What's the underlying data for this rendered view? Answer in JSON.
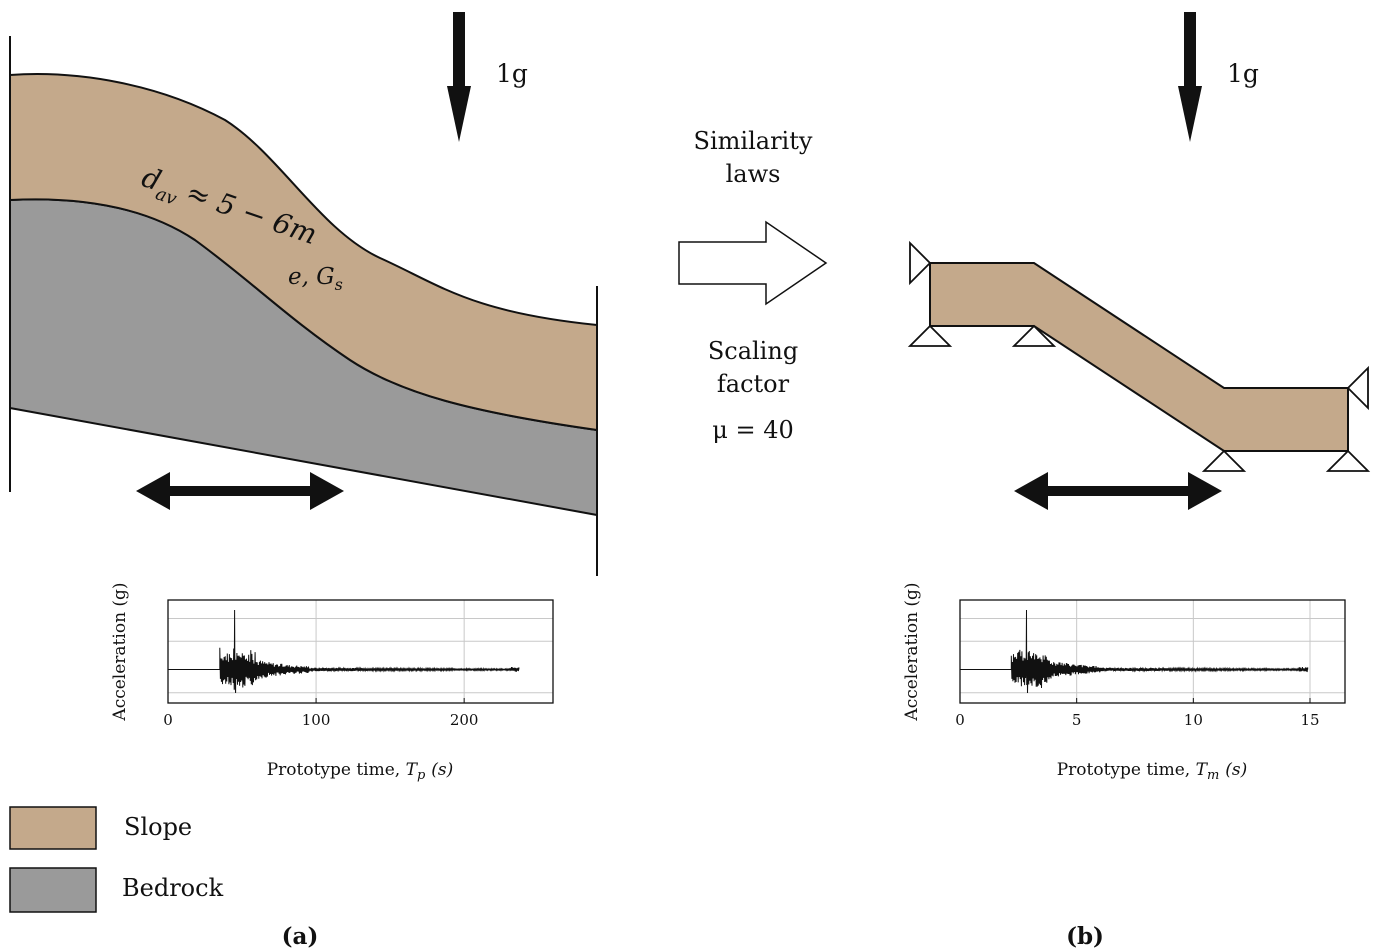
{
  "colors": {
    "slope": "#c4a98b",
    "bedrock": "#9a9a9a",
    "line": "#111111"
  },
  "gravity_label": "1g",
  "prototype": {
    "thickness_label": "d_av ≈ 5 − 6m",
    "thickness_symbol": "d",
    "thickness_subscript": "av",
    "thickness_rest": "≈ 5 − 6m",
    "param_label": "e, G_s",
    "param_main": "e, G",
    "param_sub": "s"
  },
  "middle": {
    "similarity_line1": "Similarity",
    "similarity_line2": "laws",
    "scaling_line1": "Scaling",
    "scaling_line2": "factor",
    "mu_label": "μ = 40"
  },
  "legend": [
    {
      "label": "Slope",
      "color": "#c4a98b"
    },
    {
      "label": "Bedrock",
      "color": "#9a9a9a"
    }
  ],
  "captions": {
    "a": "(a)",
    "b": "(b)"
  },
  "chart_data": [
    {
      "type": "line",
      "ylabel": "Acceleration (g)",
      "xlabel": "Prototype time, T_p (s)",
      "xlabel_prefix": "Prototype time, ",
      "xlabel_var": "T",
      "xlabel_sub": "p",
      "xlabel_unit": "(s)",
      "xlim": [
        0,
        260
      ],
      "xticks": [
        0,
        100,
        200
      ],
      "signal_end": 237,
      "onset": 35,
      "peak_time": 45,
      "grid": true
    },
    {
      "type": "line",
      "ylabel": "Acceleration (g)",
      "xlabel": "Prototype time, T_m (s)",
      "xlabel_prefix": "Prototype time, ",
      "xlabel_var": "T",
      "xlabel_sub": "m",
      "xlabel_unit": "(s)",
      "xlim": [
        0,
        16.5
      ],
      "xticks": [
        0,
        5,
        10,
        15
      ],
      "signal_end": 14.9,
      "onset": 2.2,
      "peak_time": 2.85,
      "grid": true
    }
  ]
}
